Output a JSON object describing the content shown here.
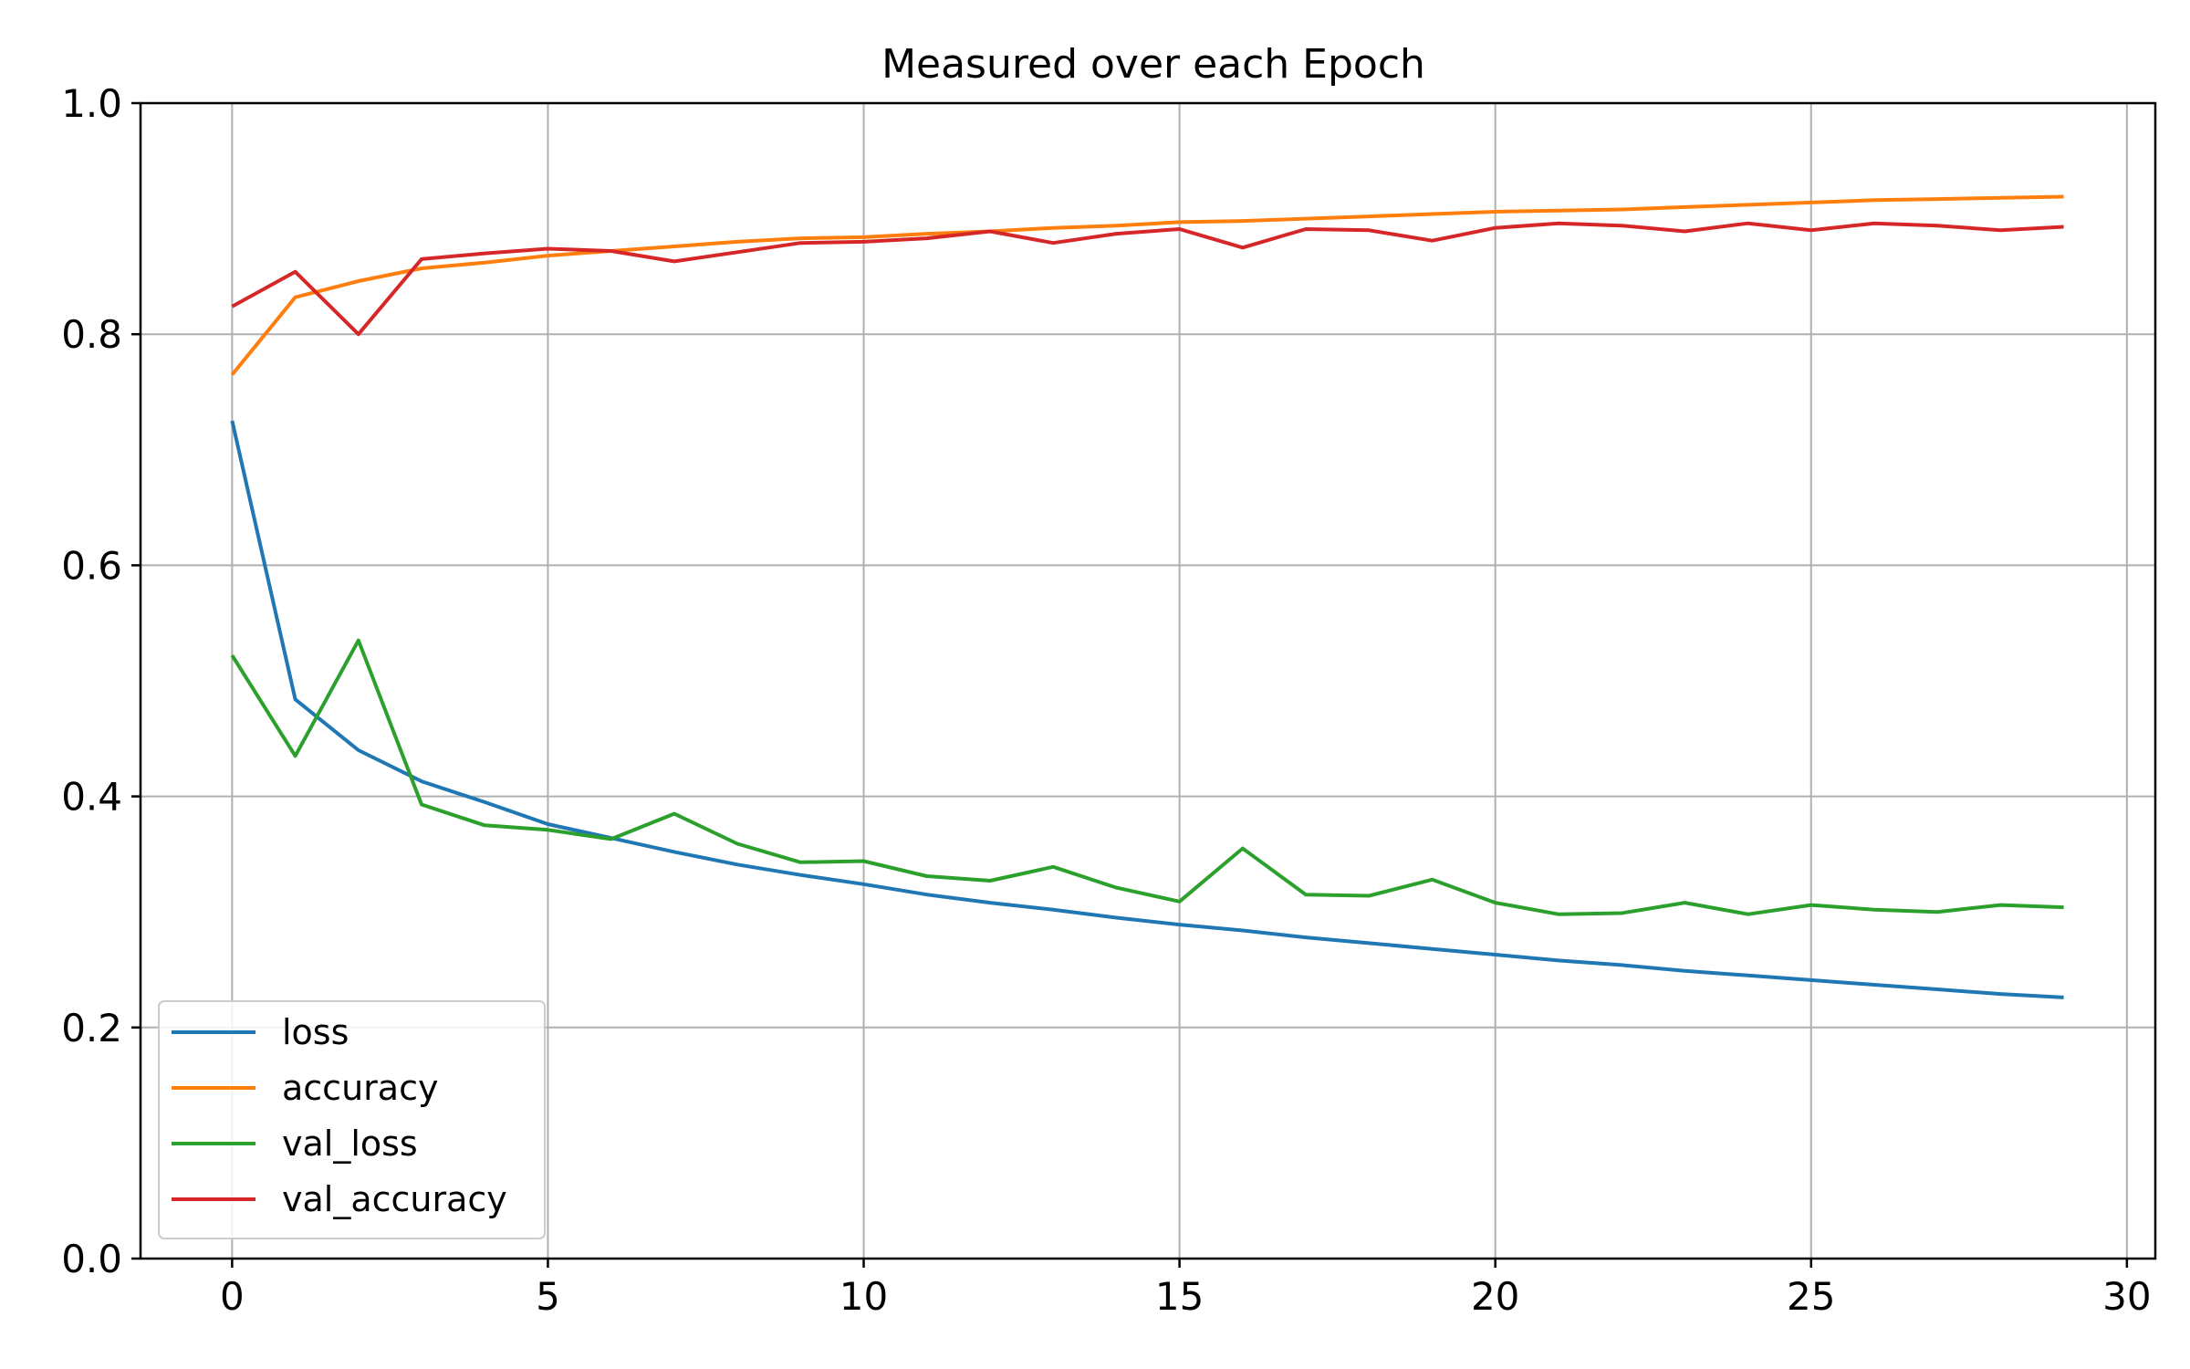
{
  "chart_data": {
    "type": "line",
    "title": "Measured over each Epoch",
    "xlabel": "",
    "ylabel": "",
    "xlim": [
      -1.45,
      30.45
    ],
    "ylim": [
      0.0,
      1.0
    ],
    "xticks": [
      0,
      5,
      10,
      15,
      20,
      25,
      30
    ],
    "yticks": [
      0.0,
      0.2,
      0.4,
      0.6,
      0.8,
      1.0
    ],
    "xtick_labels": [
      "0",
      "5",
      "10",
      "15",
      "20",
      "25",
      "30"
    ],
    "ytick_labels": [
      "0.0",
      "0.2",
      "0.4",
      "0.6",
      "0.8",
      "1.0"
    ],
    "grid": true,
    "legend_position": "lower-left",
    "x": [
      0,
      1,
      2,
      3,
      4,
      5,
      6,
      7,
      8,
      9,
      10,
      11,
      12,
      13,
      14,
      15,
      16,
      17,
      18,
      19,
      20,
      21,
      22,
      23,
      24,
      25,
      26,
      27,
      28,
      29
    ],
    "series": [
      {
        "name": "loss",
        "color": "#1f77b4",
        "values": [
          0.725,
          0.484,
          0.44,
          0.413,
          0.395,
          0.376,
          0.364,
          0.352,
          0.341,
          0.332,
          0.324,
          0.315,
          0.308,
          0.302,
          0.295,
          0.289,
          0.284,
          0.278,
          0.273,
          0.268,
          0.263,
          0.258,
          0.254,
          0.249,
          0.245,
          0.241,
          0.237,
          0.233,
          0.229,
          0.226
        ]
      },
      {
        "name": "accuracy",
        "color": "#ff7f0e",
        "values": [
          0.765,
          0.832,
          0.846,
          0.857,
          0.862,
          0.868,
          0.872,
          0.876,
          0.88,
          0.883,
          0.884,
          0.887,
          0.889,
          0.892,
          0.894,
          0.897,
          0.898,
          0.9,
          0.902,
          0.904,
          0.906,
          0.907,
          0.908,
          0.91,
          0.912,
          0.914,
          0.916,
          0.917,
          0.918,
          0.919
        ]
      },
      {
        "name": "val_loss",
        "color": "#2ca02c",
        "values": [
          0.522,
          0.435,
          0.535,
          0.393,
          0.375,
          0.371,
          0.363,
          0.385,
          0.359,
          0.343,
          0.344,
          0.331,
          0.327,
          0.339,
          0.321,
          0.309,
          0.355,
          0.315,
          0.314,
          0.328,
          0.308,
          0.298,
          0.299,
          0.308,
          0.298,
          0.306,
          0.302,
          0.3,
          0.306,
          0.304
        ]
      },
      {
        "name": "val_accuracy",
        "color": "#d62728",
        "values": [
          0.824,
          0.854,
          0.8,
          0.865,
          0.87,
          0.874,
          0.872,
          0.863,
          0.871,
          0.879,
          0.88,
          0.883,
          0.889,
          0.879,
          0.887,
          0.891,
          0.875,
          0.891,
          0.89,
          0.881,
          0.892,
          0.896,
          0.894,
          0.889,
          0.896,
          0.89,
          0.896,
          0.894,
          0.89,
          0.893
        ]
      }
    ]
  }
}
